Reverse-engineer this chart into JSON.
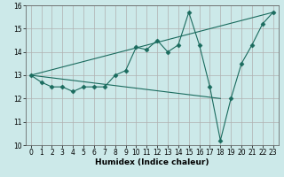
{
  "xlabel": "Humidex (Indice chaleur)",
  "xlim": [
    -0.5,
    23.5
  ],
  "ylim": [
    10,
    16
  ],
  "yticks": [
    10,
    11,
    12,
    13,
    14,
    15,
    16
  ],
  "xticks": [
    0,
    1,
    2,
    3,
    4,
    5,
    6,
    7,
    8,
    9,
    10,
    11,
    12,
    13,
    14,
    15,
    16,
    17,
    18,
    19,
    20,
    21,
    22,
    23
  ],
  "bg_color": "#cce9e9",
  "grid_color": "#b0b0b0",
  "line_color": "#1a6b5e",
  "line1_x": [
    0,
    1,
    2,
    3,
    4,
    5,
    6,
    7,
    8,
    9,
    10,
    11,
    12,
    13,
    14,
    15,
    16,
    17,
    18,
    19,
    20,
    21,
    22,
    23
  ],
  "line1_y": [
    13.0,
    12.7,
    12.5,
    12.5,
    12.3,
    12.5,
    12.5,
    12.5,
    13.0,
    13.2,
    14.2,
    14.1,
    14.5,
    14.0,
    14.3,
    15.7,
    14.3,
    12.5,
    10.2,
    12.0,
    13.5,
    14.3,
    15.2,
    15.7
  ],
  "line2_x": [
    0,
    23
  ],
  "line2_y": [
    13.0,
    15.7
  ],
  "line3_x": [
    0,
    18
  ],
  "line3_y": [
    13.0,
    12.0
  ],
  "marker": "D",
  "markersize": 2.5,
  "tick_fontsize": 5.5,
  "xlabel_fontsize": 6.5
}
